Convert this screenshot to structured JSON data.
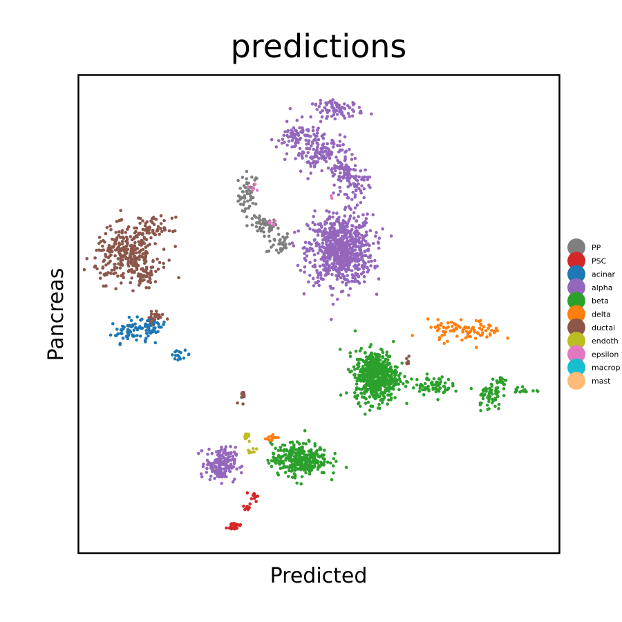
{
  "chart_data": {
    "type": "scatter",
    "title": "predictions",
    "xlabel": "Predicted",
    "ylabel": "Pancreas",
    "xlim": [
      0,
      100
    ],
    "ylim": [
      0,
      100
    ],
    "grid": false,
    "ticks": false,
    "legend_placement": "right-outside",
    "series": [
      {
        "name": "PP",
        "color": "#7f7f7f",
        "clusters": [
          [
            35.3,
            75.0,
            1.5,
            3.5,
            55
          ],
          [
            38.5,
            68.5,
            2.0,
            1.2,
            45
          ],
          [
            41.5,
            65.0,
            1.8,
            1.8,
            35
          ]
        ]
      },
      {
        "name": "PSC",
        "color": "#d62728",
        "clusters": [
          [
            32.5,
            5.5,
            1.2,
            0.7,
            25
          ],
          [
            35.0,
            9.5,
            0.6,
            0.6,
            10
          ],
          [
            36.5,
            11.8,
            0.6,
            0.8,
            12
          ]
        ]
      },
      {
        "name": "acinar",
        "color": "#1f77b4",
        "clusters": [
          [
            10.5,
            46.5,
            2.8,
            1.8,
            60
          ],
          [
            15.2,
            47.5,
            2.0,
            1.4,
            40
          ],
          [
            21.0,
            41.5,
            1.6,
            0.6,
            15
          ]
        ]
      },
      {
        "name": "alpha",
        "color": "#9467bd",
        "clusters": [
          [
            54.5,
            63.5,
            4.8,
            5.2,
            750
          ],
          [
            54.0,
            93.0,
            3.8,
            1.3,
            80
          ],
          [
            46.0,
            87.0,
            3.5,
            2.2,
            90
          ],
          [
            52.0,
            84.0,
            3.0,
            2.0,
            70
          ],
          [
            55.0,
            79.5,
            2.2,
            2.5,
            60
          ],
          [
            57.5,
            77.0,
            2.0,
            3.0,
            55
          ],
          [
            29.5,
            18.5,
            2.2,
            2.5,
            180
          ],
          [
            48.5,
            83.0,
            2.0,
            3.0,
            40
          ]
        ]
      },
      {
        "name": "beta",
        "color": "#2ca02c",
        "clusters": [
          [
            62.0,
            37.0,
            3.2,
            3.8,
            550
          ],
          [
            46.0,
            19.5,
            4.2,
            2.4,
            320
          ],
          [
            73.5,
            35.0,
            3.0,
            1.4,
            70
          ],
          [
            85.5,
            33.0,
            1.8,
            2.2,
            55
          ],
          [
            88.0,
            36.0,
            1.0,
            0.8,
            18
          ],
          [
            93.0,
            34.0,
            1.5,
            0.6,
            15
          ]
        ]
      },
      {
        "name": "delta",
        "color": "#ff7f0e",
        "clusters": [
          [
            80.5,
            46.5,
            5.5,
            1.6,
            90
          ],
          [
            40.0,
            24.0,
            0.9,
            0.6,
            12
          ]
        ]
      },
      {
        "name": "ductal",
        "color": "#8c564b",
        "clusters": [
          [
            10.0,
            62.5,
            4.8,
            4.0,
            300
          ],
          [
            15.5,
            68.0,
            2.8,
            1.6,
            60
          ],
          [
            14.0,
            58.0,
            1.5,
            1.5,
            30
          ],
          [
            34.0,
            33.0,
            0.6,
            1.2,
            12
          ],
          [
            68.5,
            40.0,
            0.5,
            0.6,
            6
          ],
          [
            15.5,
            49.5,
            1.5,
            1.0,
            20
          ]
        ]
      },
      {
        "name": "endoth",
        "color": "#bcbd22",
        "clusters": [
          [
            35.0,
            24.0,
            0.6,
            0.9,
            10
          ],
          [
            36.0,
            21.2,
            0.8,
            0.5,
            8
          ]
        ]
      },
      {
        "name": "epsilon",
        "color": "#e377c2",
        "clusters": [
          [
            36.0,
            76.5,
            1.2,
            1.0,
            5
          ],
          [
            40.5,
            69.0,
            0.6,
            0.4,
            4
          ],
          [
            52.5,
            74.5,
            0.3,
            0.3,
            2
          ]
        ]
      },
      {
        "name": "macrop",
        "color": "#17becf",
        "clusters": []
      },
      {
        "name": "mast",
        "color": "#ffbb78",
        "clusters": []
      }
    ]
  }
}
